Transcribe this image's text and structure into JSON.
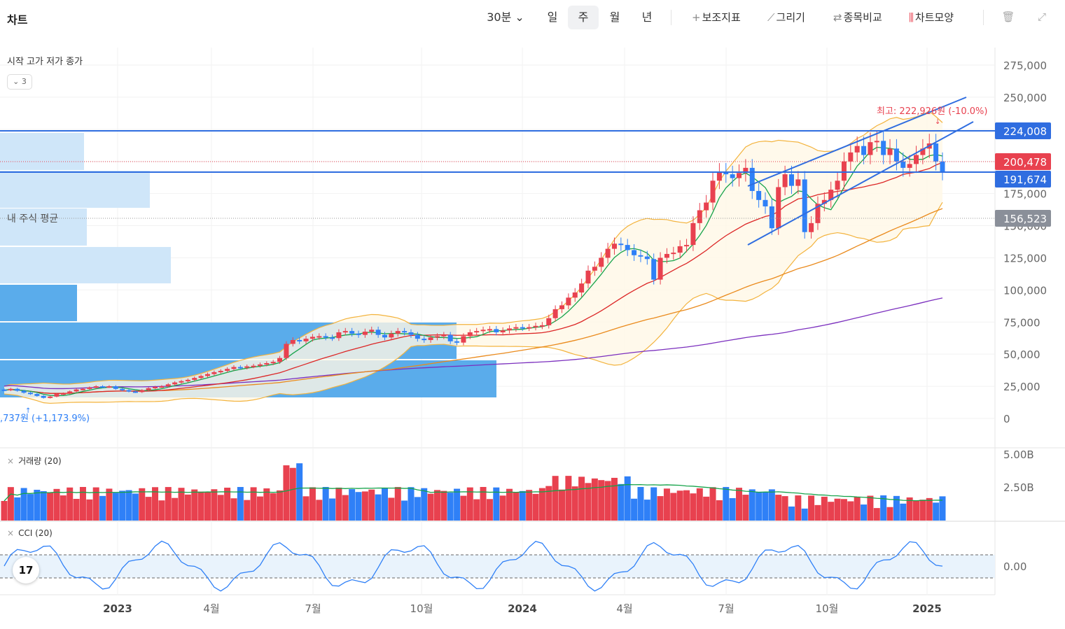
{
  "header": {
    "title": "차트",
    "timeframes": [
      "30분",
      "일",
      "주",
      "월",
      "년"
    ],
    "selected_timeframe": "주",
    "tools": [
      {
        "icon": "plus-icon",
        "label": "보조지표"
      },
      {
        "icon": "pencil-icon",
        "label": "그리기"
      },
      {
        "icon": "compare-arrows-icon",
        "label": "종목비교"
      },
      {
        "icon": "candle-bars-icon",
        "label": "차트모양"
      }
    ],
    "right_icons": [
      "trash-icon",
      "expand-icon"
    ]
  },
  "legend": {
    "ohlc_label": "시작 고가 저가 종가",
    "collapse_label": "⌄ 3",
    "my_avg_label": "내 주식 평균"
  },
  "panels": {
    "volume_label": "거래량 (20)",
    "cci_label": "CCI (20)"
  },
  "logo_text": "17",
  "colors": {
    "up": "#e8414f",
    "down": "#2f80f7",
    "ma5": "#16a34a",
    "ma20": "#dc2626",
    "ma60": "#ea8a1c",
    "ma120": "#7b2fbe",
    "band": "#f3b33d"
  },
  "chart_data": {
    "type": "candlestick",
    "interval": "week",
    "x_axis_labels": [
      "2023",
      "4월",
      "7월",
      "10월",
      "2024",
      "4월",
      "7월",
      "10월",
      "2025"
    ],
    "y_axis_labels": [
      "275,000",
      "250,000",
      "225,000",
      "200,000",
      "175,000",
      "150,000",
      "125,000",
      "100,000",
      "75,000",
      "50,000",
      "25,000",
      "0"
    ],
    "ylim": [
      0,
      275000
    ],
    "price_tags": [
      {
        "value": "224,008",
        "style": "blue"
      },
      {
        "value": "200,478",
        "style": "red"
      },
      {
        "value": "191,674",
        "style": "blue"
      },
      {
        "value": "156,523",
        "style": "gray"
      }
    ],
    "annotations": {
      "high": "최고: 222,926원 (-10.0%)",
      "low": ",737원 (+1,173.9%)"
    },
    "candles_close": [
      22000,
      23000,
      21500,
      20000,
      19000,
      17500,
      16000,
      17000,
      19000,
      19500,
      21000,
      22500,
      23000,
      24000,
      25000,
      24500,
      25000,
      23000,
      22000,
      21000,
      20500,
      22000,
      23500,
      24500,
      25000,
      26500,
      28000,
      29000,
      30000,
      31500,
      33000,
      34500,
      36000,
      37000,
      38500,
      40000,
      39500,
      40500,
      41000,
      42000,
      43000,
      44000,
      47000,
      58000,
      61000,
      60000,
      62000,
      63500,
      64000,
      63000,
      62500,
      67000,
      68000,
      66000,
      65000,
      67500,
      69000,
      65000,
      63000,
      66000,
      68000,
      67000,
      65000,
      62000,
      61000,
      63000,
      64000,
      65000,
      60000,
      59000,
      64000,
      67000,
      68000,
      69000,
      69500,
      67000,
      68500,
      70000,
      71000,
      70500,
      71000,
      72000,
      72500,
      78000,
      85000,
      88000,
      94000,
      98000,
      105000,
      115000,
      118000,
      125000,
      132000,
      136000,
      135000,
      131000,
      127000,
      126000,
      124000,
      108000,
      125000,
      128000,
      129000,
      134000,
      135000,
      152000,
      162000,
      168000,
      185000,
      192000,
      190000,
      187000,
      191000,
      195000,
      177000,
      170000,
      165000,
      148000,
      180000,
      190000,
      181000,
      186000,
      145000,
      152000,
      167000,
      170000,
      178000,
      185000,
      200000,
      207000,
      212000,
      205000,
      215000,
      216000,
      205000,
      210000,
      200000,
      195000,
      198000,
      205000,
      210000,
      214000,
      200000,
      192000
    ],
    "volume_max_label": "5.00B",
    "volume_mid_label": "2.50B",
    "cci_zero_label": "0.00",
    "series": [
      {
        "name": "5"
      },
      {
        "name": "20"
      },
      {
        "name": "60"
      },
      {
        "name": "120"
      }
    ]
  }
}
